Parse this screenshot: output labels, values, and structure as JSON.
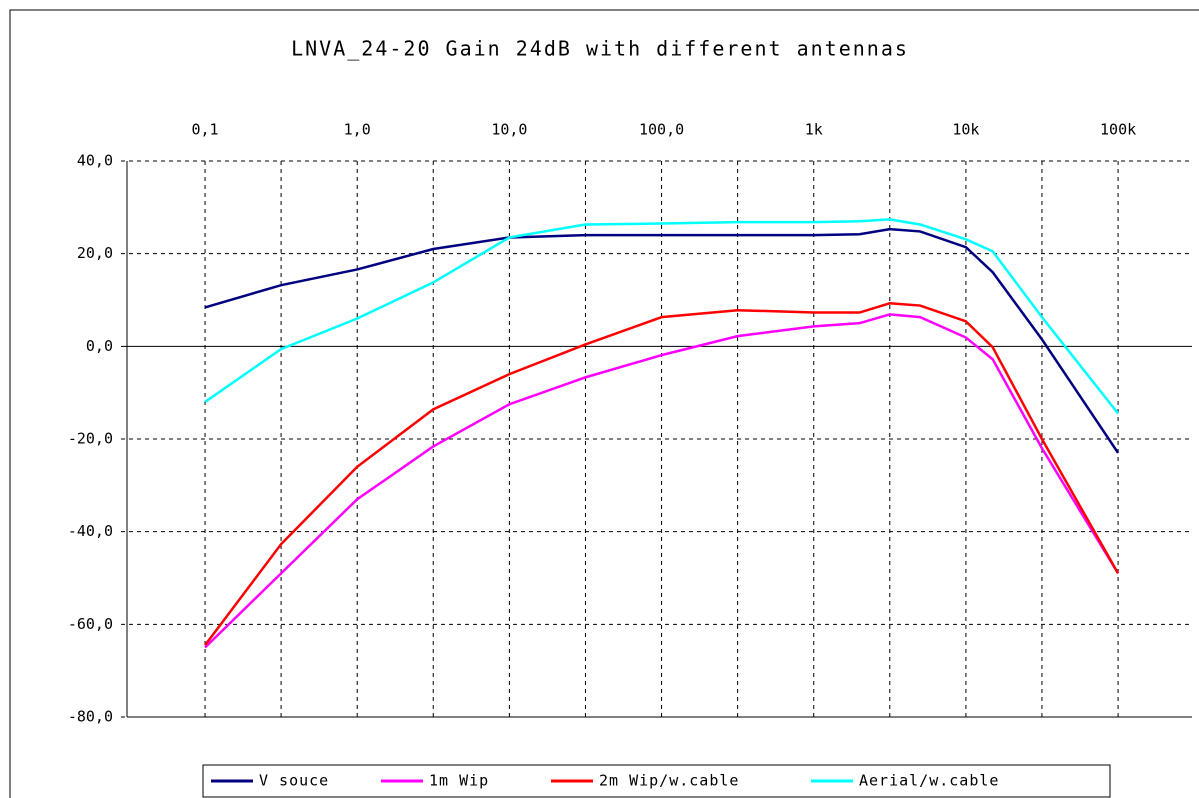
{
  "chart_data": {
    "type": "line",
    "title": "LNVA_24-20 Gain 24dB with different antennas",
    "x": [
      0.1,
      0.316,
      1,
      3.16,
      10,
      31.6,
      100,
      316,
      1000,
      2000,
      3160,
      5000,
      10000,
      15000,
      31600,
      100000
    ],
    "series": [
      {
        "name": "V souce",
        "color": "#000080",
        "values": [
          8.4,
          13.2,
          16.6,
          21,
          23.5,
          24,
          24,
          24,
          24,
          24.2,
          25.3,
          24.8,
          21.4,
          16,
          1.5,
          -23
        ]
      },
      {
        "name": "1m Wip",
        "color": "#ff00ff",
        "values": [
          -65,
          -49,
          -33,
          -21.6,
          -12.5,
          -6.7,
          -1.9,
          2.2,
          4.3,
          5,
          6.9,
          6.3,
          1.9,
          -2.8,
          -22,
          -49
        ]
      },
      {
        "name": "2m Wip/w.cable",
        "color": "#ff0000",
        "values": [
          -64.5,
          -42.7,
          -26,
          -13.6,
          -6,
          0.4,
          6.3,
          7.8,
          7.3,
          7.3,
          9.3,
          8.8,
          5.4,
          -0.2,
          -20,
          -49
        ]
      },
      {
        "name": "Aerial/w.cable",
        "color": "#00ffff",
        "values": [
          -12,
          -0.6,
          6,
          13.8,
          23.5,
          26.3,
          26.5,
          26.8,
          26.8,
          27,
          27.4,
          26.3,
          23.1,
          20.5,
          6.3,
          -14.5
        ]
      }
    ],
    "xscale": "log",
    "xlim": [
      0.0307,
      306000
    ],
    "xticks": [
      {
        "value": 0.1,
        "label": "0,1"
      },
      {
        "value": 1,
        "label": "1,0"
      },
      {
        "value": 10,
        "label": "10,0"
      },
      {
        "value": 100,
        "label": "100,0"
      },
      {
        "value": 1000,
        "label": "1k"
      },
      {
        "value": 10000,
        "label": "10k"
      },
      {
        "value": 100000,
        "label": "100k"
      }
    ],
    "xminor": [
      0.316,
      3.16,
      31.6,
      316,
      3160,
      31600
    ],
    "ylim": [
      -80,
      40
    ],
    "yticks": [
      {
        "value": 40,
        "label": "40,0"
      },
      {
        "value": 20,
        "label": "20,0"
      },
      {
        "value": 0,
        "label": "0,0"
      },
      {
        "value": -20,
        "label": "-20,0"
      },
      {
        "value": -40,
        "label": "-40,0"
      },
      {
        "value": -60,
        "label": "-60,0"
      },
      {
        "value": -80,
        "label": "-80,0"
      }
    ],
    "grid": true,
    "legend": "bottom"
  }
}
